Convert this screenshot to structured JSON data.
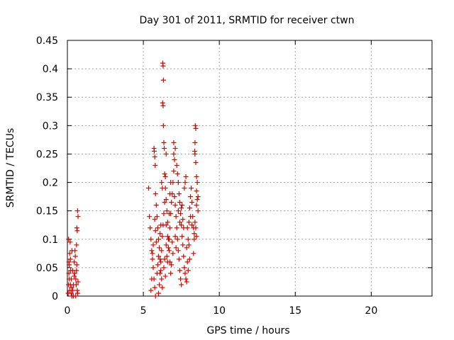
{
  "chart_data": {
    "type": "scatter",
    "title": "Day 301 of 2011, SRMTID for receiver ctwn",
    "xlabel": "GPS time / hours",
    "ylabel": "SRMTID / TECUs",
    "xlim": [
      0,
      24
    ],
    "ylim": [
      0,
      0.45
    ],
    "xticks": [
      0,
      5,
      10,
      15,
      20
    ],
    "yticks": [
      0,
      0.05,
      0.1,
      0.15,
      0.2,
      0.25,
      0.3,
      0.35,
      0.4,
      0.45
    ],
    "xtick_labels": [
      "0",
      "5",
      "10",
      "15",
      "20"
    ],
    "ytick_labels": [
      "0",
      "0.05",
      "0.1",
      "0.15",
      "0.2",
      "0.25",
      "0.3",
      "0.35",
      "0.4",
      "0.45"
    ],
    "grid": true,
    "marker": "plus",
    "series": [
      {
        "name": "SRMTID",
        "color": "#dd0000",
        "points": [
          [
            0.05,
            0.005
          ],
          [
            0.08,
            0.02
          ],
          [
            0.1,
            0.04
          ],
          [
            0.12,
            0.055
          ],
          [
            0.15,
            0.075
          ],
          [
            0.18,
            0.095
          ],
          [
            0.08,
            0.1
          ],
          [
            0.2,
            0.065
          ],
          [
            0.22,
            0.045
          ],
          [
            0.25,
            0.03
          ],
          [
            0.28,
            0.015
          ],
          [
            0.3,
            0.0
          ],
          [
            0.12,
            0.03
          ],
          [
            0.15,
            0.01
          ],
          [
            0.2,
            0.02
          ],
          [
            0.25,
            0.005
          ],
          [
            0.35,
            0.01
          ],
          [
            0.4,
            0.02
          ],
          [
            0.45,
            0.035
          ],
          [
            0.48,
            0.04
          ],
          [
            0.5,
            0.08
          ],
          [
            0.52,
            0.07
          ],
          [
            0.55,
            0.03
          ],
          [
            0.58,
            0.02
          ],
          [
            0.6,
            0.09
          ],
          [
            0.62,
            0.12
          ],
          [
            0.65,
            0.115
          ],
          [
            0.67,
            0.15
          ],
          [
            0.7,
            0.14
          ],
          [
            0.62,
            0.055
          ],
          [
            0.65,
            0.01
          ],
          [
            0.68,
            0.005
          ],
          [
            0.7,
            0.025
          ],
          [
            0.45,
            0.06
          ],
          [
            0.3,
            0.08
          ],
          [
            0.1,
            0.06
          ],
          [
            0.35,
            0.045
          ],
          [
            0.4,
            0.0
          ],
          [
            0.55,
            0.0
          ],
          [
            0.6,
            0.045
          ],
          [
            5.35,
            0.19
          ],
          [
            5.4,
            0.14
          ],
          [
            5.45,
            0.12
          ],
          [
            5.5,
            0.1
          ],
          [
            5.55,
            0.08
          ],
          [
            5.6,
            0.065
          ],
          [
            5.65,
            0.05
          ],
          [
            5.7,
            0.03
          ],
          [
            5.75,
            0.015
          ],
          [
            5.8,
            0.0
          ],
          [
            5.5,
            0.01
          ],
          [
            5.55,
            0.03
          ],
          [
            5.6,
            0.075
          ],
          [
            5.65,
            0.09
          ],
          [
            5.7,
            0.26
          ],
          [
            5.72,
            0.255
          ],
          [
            5.75,
            0.245
          ],
          [
            5.78,
            0.23
          ],
          [
            5.8,
            0.18
          ],
          [
            5.85,
            0.16
          ],
          [
            5.9,
            0.14
          ],
          [
            5.95,
            0.12
          ],
          [
            6.0,
            0.1
          ],
          [
            6.05,
            0.085
          ],
          [
            6.1,
            0.065
          ],
          [
            6.15,
            0.045
          ],
          [
            6.2,
            0.03
          ],
          [
            6.25,
            0.015
          ],
          [
            6.0,
            0.005
          ],
          [
            6.05,
            0.02
          ],
          [
            6.1,
            0.04
          ],
          [
            6.15,
            0.06
          ],
          [
            6.2,
            0.08
          ],
          [
            6.25,
            0.105
          ],
          [
            6.3,
            0.125
          ],
          [
            6.35,
            0.145
          ],
          [
            6.4,
            0.165
          ],
          [
            6.45,
            0.19
          ],
          [
            6.2,
            0.2
          ],
          [
            6.25,
            0.19
          ],
          [
            6.28,
            0.41
          ],
          [
            6.3,
            0.405
          ],
          [
            6.32,
            0.38
          ],
          [
            6.27,
            0.34
          ],
          [
            6.3,
            0.335
          ],
          [
            6.32,
            0.3
          ],
          [
            6.35,
            0.27
          ],
          [
            6.38,
            0.26
          ],
          [
            6.4,
            0.215
          ],
          [
            6.45,
            0.21
          ],
          [
            6.5,
            0.17
          ],
          [
            6.55,
            0.15
          ],
          [
            6.6,
            0.13
          ],
          [
            6.65,
            0.1
          ],
          [
            6.7,
            0.08
          ],
          [
            6.75,
            0.06
          ],
          [
            6.8,
            0.04
          ],
          [
            6.5,
            0.09
          ],
          [
            6.55,
            0.07
          ],
          [
            6.6,
            0.06
          ],
          [
            6.65,
            0.085
          ],
          [
            6.7,
            0.1
          ],
          [
            6.75,
            0.12
          ],
          [
            6.8,
            0.145
          ],
          [
            6.85,
            0.165
          ],
          [
            6.9,
            0.18
          ],
          [
            6.95,
            0.2
          ],
          [
            7.0,
            0.22
          ],
          [
            7.05,
            0.24
          ],
          [
            7.1,
            0.26
          ],
          [
            7.0,
            0.27
          ],
          [
            7.05,
            0.175
          ],
          [
            7.1,
            0.16
          ],
          [
            7.15,
            0.14
          ],
          [
            7.2,
            0.12
          ],
          [
            7.25,
            0.1
          ],
          [
            7.3,
            0.08
          ],
          [
            7.35,
            0.065
          ],
          [
            7.4,
            0.045
          ],
          [
            7.45,
            0.03
          ],
          [
            7.5,
            0.02
          ],
          [
            7.2,
            0.23
          ],
          [
            7.25,
            0.215
          ],
          [
            7.3,
            0.2
          ],
          [
            7.35,
            0.18
          ],
          [
            7.4,
            0.165
          ],
          [
            7.45,
            0.145
          ],
          [
            7.5,
            0.125
          ],
          [
            7.55,
            0.105
          ],
          [
            7.6,
            0.09
          ],
          [
            7.65,
            0.07
          ],
          [
            7.7,
            0.05
          ],
          [
            7.75,
            0.04
          ],
          [
            7.8,
            0.03
          ],
          [
            7.85,
            0.025
          ],
          [
            7.9,
            0.06
          ],
          [
            7.95,
            0.1
          ],
          [
            8.0,
            0.13
          ],
          [
            8.05,
            0.155
          ],
          [
            8.1,
            0.175
          ],
          [
            8.15,
            0.19
          ],
          [
            8.2,
            0.165
          ],
          [
            8.25,
            0.14
          ],
          [
            8.3,
            0.12
          ],
          [
            8.35,
            0.1
          ],
          [
            8.4,
            0.27
          ],
          [
            8.42,
            0.3
          ],
          [
            8.45,
            0.295
          ],
          [
            8.38,
            0.255
          ],
          [
            8.4,
            0.25
          ],
          [
            8.45,
            0.235
          ],
          [
            8.5,
            0.21
          ],
          [
            8.55,
            0.2
          ],
          [
            8.5,
            0.185
          ],
          [
            8.55,
            0.17
          ],
          [
            8.6,
            0.15
          ],
          [
            8.4,
            0.13
          ],
          [
            8.45,
            0.12
          ],
          [
            8.5,
            0.105
          ],
          [
            8.3,
            0.075
          ],
          [
            8.35,
            0.11
          ],
          [
            8.2,
            0.125
          ],
          [
            8.1,
            0.14
          ],
          [
            7.7,
            0.19
          ],
          [
            7.75,
            0.2
          ],
          [
            7.8,
            0.21
          ],
          [
            7.6,
            0.135
          ],
          [
            7.65,
            0.12
          ],
          [
            7.55,
            0.16
          ],
          [
            7.4,
            0.13
          ],
          [
            7.3,
            0.15
          ],
          [
            7.15,
            0.085
          ],
          [
            7.1,
            0.105
          ],
          [
            6.95,
            0.075
          ],
          [
            6.9,
            0.095
          ],
          [
            6.85,
            0.055
          ],
          [
            6.6,
            0.105
          ],
          [
            6.5,
            0.125
          ],
          [
            6.4,
            0.065
          ],
          [
            6.35,
            0.05
          ],
          [
            6.45,
            0.035
          ],
          [
            5.9,
            0.04
          ],
          [
            5.95,
            0.055
          ],
          [
            6.0,
            0.07
          ],
          [
            6.1,
            0.11
          ],
          [
            6.15,
            0.125
          ],
          [
            5.85,
            0.095
          ],
          [
            5.8,
            0.115
          ],
          [
            5.75,
            0.135
          ],
          [
            6.5,
            0.25
          ],
          [
            7.0,
            0.25
          ],
          [
            8.5,
            0.16
          ],
          [
            8.6,
            0.175
          ],
          [
            7.9,
            0.12
          ],
          [
            8.0,
            0.09
          ],
          [
            7.85,
            0.085
          ],
          [
            7.95,
            0.045
          ],
          [
            8.05,
            0.065
          ],
          [
            7.5,
            0.155
          ],
          [
            6.7,
            0.145
          ],
          [
            6.75,
            0.18
          ],
          [
            6.8,
            0.2
          ]
        ]
      }
    ]
  }
}
